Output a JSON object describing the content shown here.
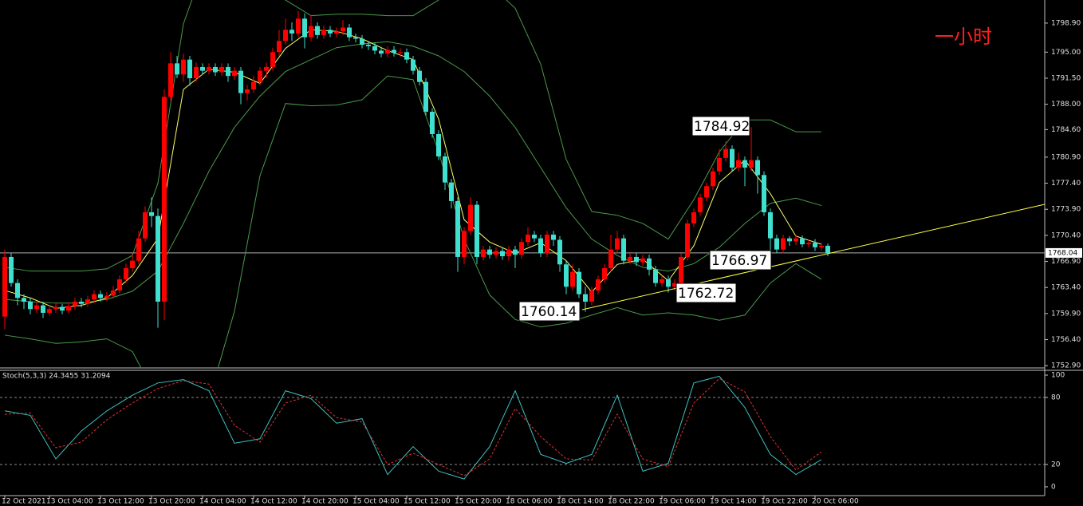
{
  "chart_data": [
    {
      "type": "candlestick",
      "title": "一小时",
      "categories": [
        "12 Oct 2021",
        null,
        null,
        null,
        null,
        null,
        null,
        "13 Oct 04:00",
        null,
        null,
        null,
        null,
        null,
        null,
        null,
        "13 Oct 12:00",
        null,
        null,
        null,
        null,
        null,
        null,
        null,
        "13 Oct 20:00",
        null,
        null,
        null,
        null,
        null,
        null,
        null,
        "14 Oct 04:00",
        null,
        null,
        null,
        null,
        null,
        null,
        null,
        "14 Oct 12:00",
        null,
        null,
        null,
        null,
        null,
        null,
        null,
        "14 Oct 20:00",
        null,
        null,
        null,
        null,
        null,
        null,
        null,
        "15 Oct 04:00",
        null,
        null,
        null,
        null,
        null,
        null,
        null,
        "15 Oct 12:00",
        null,
        null,
        null,
        null,
        null,
        null,
        null,
        "15 Oct 20:00",
        null,
        null,
        null,
        null,
        null,
        null,
        null,
        "18 Oct 06:00",
        null,
        null,
        null,
        null,
        null,
        null,
        null,
        "18 Oct 14:00",
        null,
        null,
        null,
        null,
        null,
        null,
        null,
        "18 Oct 22:00",
        null,
        null,
        null,
        null,
        null,
        null,
        null,
        "19 Oct 06:00",
        null,
        null,
        null,
        null,
        null,
        null,
        null,
        "19 Oct 14:00",
        null,
        null,
        null,
        null,
        null,
        null,
        null,
        "19 Oct 22:00",
        null,
        null,
        null,
        null,
        null,
        null,
        null,
        "20 Oct 06:00",
        null,
        null
      ],
      "open": [
        1759.5,
        1767.5,
        1764.0,
        1762.0,
        1761.5,
        1760.5,
        1761.0,
        1760.0,
        1760.5,
        1760.8,
        1760.3,
        1760.9,
        1761.5,
        1761.2,
        1761.8,
        1762.5,
        1762.0,
        1762.3,
        1763.0,
        1764.5,
        1766.0,
        1767.0,
        1770.0,
        1773.5,
        1773.0,
        1761.5,
        1789.0,
        1793.5,
        1792.0,
        1794.0,
        1791.5,
        1793.0,
        1792.5,
        1793.0,
        1792.3,
        1793.0,
        1791.8,
        1792.5,
        1789.5,
        1790.0,
        1791.0,
        1792.5,
        1793.0,
        1795.0,
        1796.5,
        1798.0,
        1797.5,
        1799.5,
        1797.0,
        1798.5,
        1797.3,
        1798.0,
        1797.5,
        1797.8,
        1798.3,
        1797.0,
        1796.8,
        1796.0,
        1795.8,
        1795.2,
        1794.8,
        1795.3,
        1794.9,
        1795.0,
        1794.0,
        1792.5,
        1791.0,
        1787.0,
        1784.0,
        1781.0,
        1777.5,
        1775.0,
        1767.5,
        1771.0,
        1774.5,
        1767.5,
        1768.5,
        1767.8,
        1768.3,
        1767.6,
        1768.5,
        1767.8,
        1769.5,
        1770.5,
        1770.0,
        1768.0,
        1770.5,
        1769.8,
        1766.5,
        1763.5,
        1765.5,
        1762.5,
        1761.5,
        1763.0,
        1764.5,
        1766.0,
        1768.5,
        1770.0,
        1767.0,
        1767.5,
        1766.8,
        1767.3,
        1765.8,
        1764.0,
        1764.5,
        1763.5,
        1764.0,
        1767.5,
        1772.0,
        1773.5,
        1775.5,
        1777.0,
        1779.0,
        1780.8,
        1782.0,
        1779.5,
        1780.5,
        1779.5,
        1780.5,
        1778.5,
        1773.5,
        1770.0,
        1768.5,
        1770.0,
        1769.6,
        1770.0,
        1769.2,
        1769.4,
        1768.8,
        1769.0
      ],
      "high": [
        1768.5,
        1768.0,
        1764.5,
        1762.5,
        1762.0,
        1761.5,
        1761.5,
        1761.0,
        1761.3,
        1761.2,
        1761.4,
        1762.0,
        1762.0,
        1762.3,
        1763.0,
        1763.0,
        1762.8,
        1763.6,
        1765.0,
        1766.6,
        1768.0,
        1771.0,
        1774.3,
        1775.5,
        1774.0,
        1790.0,
        1795.0,
        1794.5,
        1794.8,
        1794.5,
        1793.6,
        1793.5,
        1793.5,
        1793.5,
        1793.5,
        1793.5,
        1793.0,
        1793.0,
        1790.6,
        1791.8,
        1793.0,
        1793.6,
        1795.6,
        1798.0,
        1799.5,
        1799.0,
        1800.5,
        1800.2,
        1800.0,
        1799.0,
        1798.6,
        1798.5,
        1798.3,
        1799.3,
        1798.8,
        1797.5,
        1797.3,
        1796.5,
        1796.3,
        1795.7,
        1795.8,
        1795.8,
        1795.5,
        1795.5,
        1794.5,
        1793.0,
        1791.5,
        1787.5,
        1784.5,
        1781.5,
        1778.0,
        1775.5,
        1771.5,
        1775.5,
        1775.0,
        1769.0,
        1769.0,
        1768.8,
        1768.8,
        1769.0,
        1769.0,
        1770.0,
        1771.5,
        1771.0,
        1770.5,
        1771.0,
        1771.0,
        1770.3,
        1767.0,
        1766.5,
        1766.0,
        1763.5,
        1763.5,
        1765.0,
        1766.5,
        1770.5,
        1771.0,
        1770.5,
        1768.0,
        1768.0,
        1767.8,
        1767.8,
        1766.3,
        1765.0,
        1765.0,
        1764.5,
        1768.0,
        1772.5,
        1774.0,
        1776.0,
        1777.5,
        1779.5,
        1782.0,
        1783.0,
        1782.5,
        1781.5,
        1781.0,
        1784.92,
        1781.0,
        1779.0,
        1774.0,
        1770.5,
        1770.5,
        1770.3,
        1770.5,
        1770.4,
        1769.8,
        1769.9,
        1769.4,
        1769.3
      ],
      "low": [
        1757.8,
        1763.5,
        1761.0,
        1760.5,
        1759.8,
        1760.0,
        1759.3,
        1759.6,
        1760.0,
        1759.8,
        1759.9,
        1760.4,
        1760.7,
        1760.8,
        1761.3,
        1761.5,
        1761.6,
        1761.9,
        1762.6,
        1764.0,
        1765.5,
        1766.5,
        1769.5,
        1771.5,
        1758.0,
        1759.0,
        1788.5,
        1791.5,
        1791.0,
        1790.5,
        1791.0,
        1792.0,
        1792.0,
        1791.8,
        1791.8,
        1791.0,
        1791.3,
        1788.0,
        1788.5,
        1789.5,
        1790.5,
        1791.5,
        1792.5,
        1794.5,
        1796.0,
        1796.5,
        1797.0,
        1795.5,
        1796.5,
        1796.8,
        1796.8,
        1797.0,
        1797.0,
        1797.3,
        1796.5,
        1796.3,
        1795.5,
        1795.3,
        1794.7,
        1794.3,
        1794.3,
        1794.4,
        1794.4,
        1793.5,
        1792.0,
        1790.5,
        1786.5,
        1783.5,
        1780.5,
        1776.5,
        1774.0,
        1765.5,
        1766.5,
        1770.5,
        1766.5,
        1767.0,
        1767.3,
        1767.3,
        1767.1,
        1767.0,
        1766.0,
        1767.3,
        1769.0,
        1769.5,
        1767.5,
        1767.5,
        1769.0,
        1765.5,
        1762.5,
        1763.0,
        1762.0,
        1760.14,
        1761.0,
        1762.5,
        1764.0,
        1765.5,
        1768.0,
        1766.5,
        1766.5,
        1766.3,
        1766.3,
        1765.0,
        1763.5,
        1763.5,
        1762.72,
        1763.0,
        1763.5,
        1767.0,
        1771.5,
        1773.0,
        1775.0,
        1776.5,
        1778.5,
        1780.3,
        1779.0,
        1779.0,
        1777.0,
        1779.0,
        1776.0,
        1773.0,
        1766.97,
        1768.0,
        1768.0,
        1769.0,
        1769.1,
        1768.8,
        1768.8,
        1768.3,
        1768.4,
        1767.6
      ],
      "close": [
        1767.5,
        1764.0,
        1762.0,
        1761.5,
        1760.5,
        1761.0,
        1760.0,
        1760.5,
        1760.8,
        1760.3,
        1760.9,
        1761.5,
        1761.2,
        1761.8,
        1762.5,
        1762.0,
        1762.3,
        1763.0,
        1764.5,
        1766.0,
        1767.0,
        1770.0,
        1773.5,
        1773.0,
        1761.5,
        1789.0,
        1793.5,
        1792.0,
        1794.0,
        1791.5,
        1793.0,
        1792.5,
        1793.0,
        1792.3,
        1793.0,
        1791.8,
        1792.5,
        1789.5,
        1790.0,
        1791.0,
        1792.5,
        1793.0,
        1795.0,
        1796.5,
        1798.0,
        1797.5,
        1799.5,
        1797.0,
        1798.5,
        1797.3,
        1798.0,
        1797.5,
        1797.8,
        1798.3,
        1797.0,
        1796.8,
        1796.0,
        1795.8,
        1795.2,
        1794.8,
        1795.3,
        1794.9,
        1795.0,
        1794.0,
        1792.5,
        1791.0,
        1787.0,
        1784.0,
        1781.0,
        1777.5,
        1775.0,
        1767.5,
        1771.0,
        1774.5,
        1767.5,
        1768.5,
        1767.8,
        1768.3,
        1767.6,
        1768.5,
        1767.8,
        1769.5,
        1770.5,
        1770.0,
        1768.0,
        1770.5,
        1769.8,
        1766.5,
        1763.5,
        1765.5,
        1762.5,
        1761.5,
        1763.0,
        1764.5,
        1766.0,
        1768.5,
        1770.0,
        1767.0,
        1767.5,
        1766.8,
        1767.3,
        1765.8,
        1764.0,
        1764.5,
        1763.5,
        1764.0,
        1767.5,
        1772.0,
        1773.5,
        1775.5,
        1777.0,
        1779.0,
        1780.8,
        1782.0,
        1779.5,
        1780.5,
        1779.5,
        1780.5,
        1778.5,
        1773.5,
        1770.0,
        1768.5,
        1770.0,
        1769.6,
        1770.0,
        1769.2,
        1769.4,
        1768.8,
        1769.0,
        1768.04
      ],
      "up_color": "#ff0000",
      "down_color": "#40e0d0",
      "overlays": {
        "x": [
          0,
          4,
          8,
          12,
          16,
          20,
          24,
          28,
          32,
          36,
          40,
          44,
          48,
          52,
          56,
          60,
          64,
          68,
          72,
          76,
          80,
          84,
          88,
          92,
          96,
          100,
          104,
          108,
          112,
          116,
          120,
          124,
          128
        ],
        "series": [
          {
            "color": "#4a9a4a",
            "values": [
              1766.1,
              1765.6,
              1765.6,
              1765.6,
              1765.9,
              1767.7,
              1777.4,
              1798.8,
              1808.4,
              1808.4,
              1806.3,
              1802.0,
              1799.9,
              1800.1,
              1800.1,
              1799.9,
              1799.9,
              1802.0,
              1805.2,
              1804.1,
              1800.9,
              1793.4,
              1780.6,
              1773.6,
              1773.1,
              1772.0,
              1769.9,
              1775.2,
              1781.6,
              1785.9,
              1785.9,
              1784.3,
              1784.3
            ]
          },
          {
            "color": "#4a9a4a",
            "values": [
              1761.8,
              1761.5,
              1761.3,
              1761.3,
              1761.8,
              1762.9,
              1765.6,
              1772.0,
              1779.0,
              1784.9,
              1789.1,
              1792.4,
              1794.0,
              1795.6,
              1796.1,
              1796.4,
              1795.8,
              1794.5,
              1792.4,
              1789.1,
              1784.9,
              1779.5,
              1774.1,
              1769.9,
              1767.7,
              1766.1,
              1765.6,
              1766.6,
              1768.8,
              1772.0,
              1774.7,
              1775.4,
              1774.4
            ]
          },
          {
            "color": "#4a9a4a",
            "values": [
              1757.0,
              1756.5,
              1755.9,
              1756.1,
              1756.5,
              1754.8,
              1748.4,
              1741.9,
              1748.4,
              1760.2,
              1778.4,
              1788.1,
              1787.8,
              1787.9,
              1788.6,
              1791.8,
              1791.3,
              1781.6,
              1769.9,
              1762.4,
              1759.1,
              1758.1,
              1758.6,
              1759.7,
              1760.7,
              1759.7,
              1760.0,
              1759.7,
              1759.0,
              1759.7,
              1764.0,
              1766.6,
              1764.5
            ]
          },
          {
            "color": "#ffff66",
            "values": [
              1763.0,
              1762.0,
              1760.6,
              1761.0,
              1762.0,
              1765.0,
              1770.0,
              1790.0,
              1792.7,
              1792.3,
              1790.8,
              1795.5,
              1798.0,
              1797.8,
              1796.8,
              1795.2,
              1794.0,
              1786.0,
              1772.5,
              1769.5,
              1768.0,
              1769.4,
              1767.0,
              1762.8,
              1766.5,
              1767.2,
              1764.3,
              1769.0,
              1777.5,
              1780.5,
              1776.0,
              1770.3,
              1769.2
            ]
          }
        ]
      },
      "annotations": [
        1784.92,
        1766.97,
        1762.72,
        1760.14
      ],
      "last_price": 1768.04,
      "ylim": [
        1752.6,
        1802.0
      ],
      "yticks": [
        {
          "value": 1798.9,
          "label": "1798.90"
        },
        {
          "value": 1795.0,
          "label": "1795.00"
        },
        {
          "value": 1791.5,
          "label": "1791.50"
        },
        {
          "value": 1788.0,
          "label": "1788.00"
        },
        {
          "value": 1784.6,
          "label": "1784.60"
        },
        {
          "value": 1780.9,
          "label": "1780.90"
        },
        {
          "value": 1777.4,
          "label": "1777.40"
        },
        {
          "value": 1773.9,
          "label": "1773.90"
        },
        {
          "value": 1770.4,
          "label": "1770.40"
        },
        {
          "value": 1766.9,
          "label": "1766.90"
        },
        {
          "value": 1763.4,
          "label": "1763.40"
        },
        {
          "value": 1759.9,
          "label": "1759.90"
        },
        {
          "value": 1756.4,
          "label": "1756.40"
        },
        {
          "value": 1752.9,
          "label": "1752.90"
        }
      ]
    },
    {
      "type": "line",
      "title": "Stoch(5,3,3) 24.3455 31.2094",
      "x": [
        0,
        4,
        8,
        12,
        16,
        20,
        24,
        28,
        32,
        36,
        40,
        44,
        48,
        52,
        56,
        60,
        64,
        68,
        72,
        76,
        80,
        84,
        88,
        92,
        96,
        100,
        104,
        108,
        112,
        116,
        120,
        124,
        128
      ],
      "series": [
        {
          "color": "#40c0c0",
          "dashed": false,
          "values": [
            68,
            64,
            25,
            50,
            68,
            82,
            93,
            96,
            86,
            39,
            43,
            86,
            79,
            57,
            61,
            11,
            36,
            14,
            7,
            36,
            86,
            29,
            21,
            29,
            82,
            14,
            21,
            93,
            99,
            71,
            29,
            11,
            24.3455
          ]
        },
        {
          "color": "#e03030",
          "dashed": true,
          "values": [
            65,
            66,
            35,
            40,
            60,
            75,
            88,
            95,
            92,
            55,
            40,
            75,
            82,
            62,
            58,
            20,
            30,
            20,
            10,
            25,
            70,
            45,
            25,
            24,
            65,
            25,
            18,
            75,
            97,
            85,
            45,
            15,
            31.2094
          ]
        }
      ],
      "ylim": [
        -7.9,
        104.3
      ],
      "yticks": [
        100,
        80,
        20,
        0
      ],
      "levels": [
        80,
        20
      ]
    }
  ]
}
